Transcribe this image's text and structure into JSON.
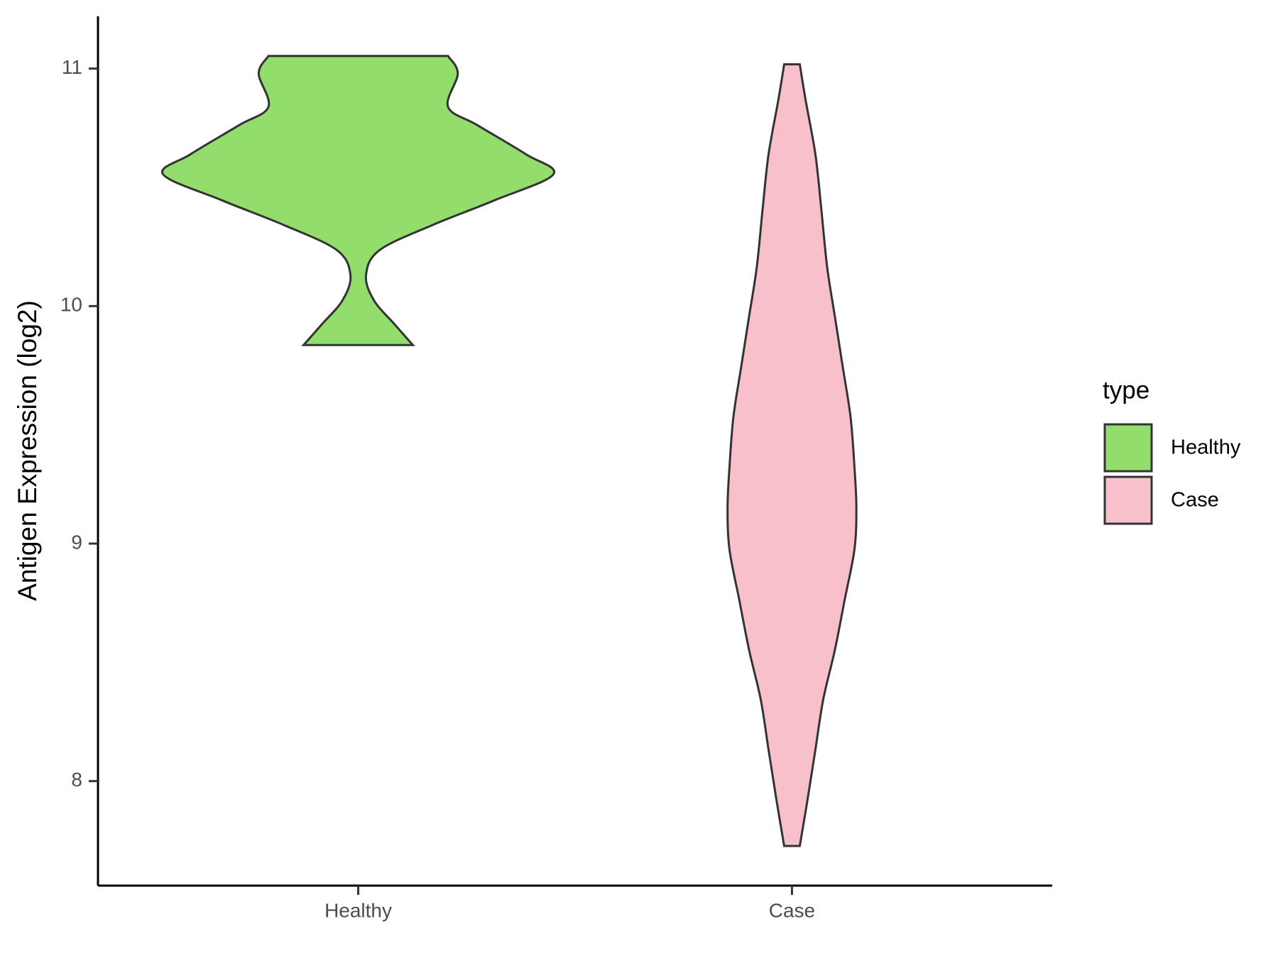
{
  "chart_data": {
    "type": "violin",
    "y_label": "Antigen Expression (log2)",
    "legend_title": "type",
    "categories": [
      "Healthy",
      "Case"
    ],
    "ylim": [
      7.56,
      11.22
    ],
    "yticks": [
      8,
      9,
      10,
      11
    ],
    "legend": "right",
    "series": [
      {
        "name": "Healthy",
        "color": "#92dd6b",
        "y": [
          11.053,
          10.979,
          10.839,
          10.762,
          10.639,
          10.555,
          10.446,
          10.341,
          10.236,
          10.131,
          10.025,
          9.92,
          9.836
        ],
        "width": [
          0.46,
          0.51,
          0.46,
          0.61,
          0.86,
          1.0,
          0.7,
          0.38,
          0.11,
          0.04,
          0.08,
          0.19,
          0.28
        ]
      },
      {
        "name": "Case",
        "color": "#f7c0cb",
        "y": [
          11.018,
          10.867,
          10.639,
          10.411,
          10.166,
          9.955,
          9.745,
          9.534,
          9.324,
          9.149,
          8.974,
          8.763,
          8.553,
          8.343,
          8.132,
          7.923,
          7.727
        ],
        "width": [
          0.04,
          0.07,
          0.12,
          0.15,
          0.18,
          0.22,
          0.26,
          0.3,
          0.32,
          0.33,
          0.32,
          0.27,
          0.22,
          0.16,
          0.12,
          0.08,
          0.04
        ]
      }
    ]
  }
}
